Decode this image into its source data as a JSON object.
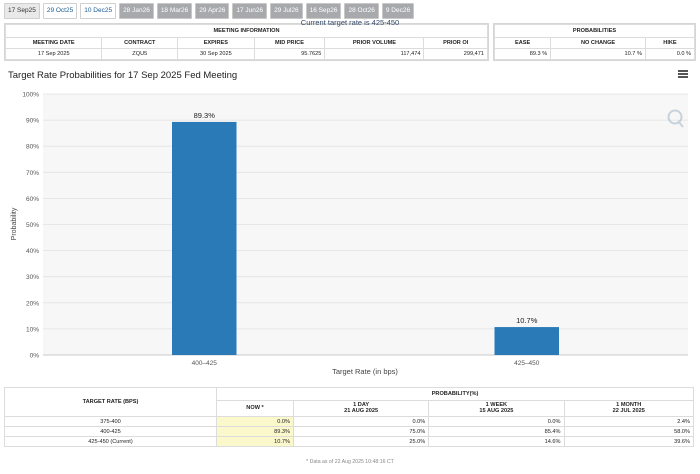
{
  "tabs": [
    "17 Sep25",
    "29 Oct25",
    "10 Dec25",
    "28 Jan26",
    "18 Mar26",
    "29 Apr26",
    "17 Jun26",
    "29 Jul26",
    "16 Sep26",
    "28 Oct26",
    "9 Dec26"
  ],
  "meeting_info": {
    "caption": "MEETING INFORMATION",
    "headers": [
      "MEETING DATE",
      "CONTRACT",
      "EXPIRES",
      "MID PRICE",
      "PRIOR VOLUME",
      "PRIOR OI"
    ],
    "row": [
      "17 Sep 2025",
      "ZQU5",
      "30 Sep 2025",
      "95.7625",
      "117,474",
      "299,471"
    ]
  },
  "probabilities": {
    "caption": "PROBABILITIES",
    "headers": [
      "EASE",
      "NO CHANGE",
      "HIKE"
    ],
    "row": [
      "89.3 %",
      "10.7 %",
      "0.0 %"
    ]
  },
  "chart_header": {
    "title": "Target Rate Probabilities for 17 Sep 2025 Fed Meeting",
    "subtitle": "Current target rate is 425-450"
  },
  "chart_data": {
    "type": "bar",
    "title": "Target Rate Probabilities for 17 Sep 2025 Fed Meeting",
    "subtitle": "Current target rate is 425-450",
    "categories": [
      "400–425",
      "425–450"
    ],
    "values": [
      89.3,
      10.7
    ],
    "data_labels": [
      "89.3%",
      "10.7%"
    ],
    "xlabel": "Target Rate (in bps)",
    "ylabel": "Probability",
    "ylim": [
      0,
      100
    ],
    "yticks": [
      "0%",
      "10%",
      "20%",
      "30%",
      "40%",
      "50%",
      "60%",
      "70%",
      "80%",
      "90%",
      "100%"
    ],
    "color": "#2a7ab8",
    "grid": true
  },
  "prob_table": {
    "header_rate": "TARGET RATE (BPS)",
    "header_prob": "PROBABILITY(%)",
    "cols": [
      {
        "l1": "NOW *",
        "l2": ""
      },
      {
        "l1": "1 DAY",
        "l2": "21 AUG 2025"
      },
      {
        "l1": "1 WEEK",
        "l2": "15 AUG 2025"
      },
      {
        "l1": "1 MONTH",
        "l2": "22 JUL 2025"
      }
    ],
    "rows": [
      {
        "rate": "375-400",
        "vals": [
          "0.0%",
          "0.0%",
          "0.0%",
          "2.4%"
        ]
      },
      {
        "rate": "400-425",
        "vals": [
          "89.3%",
          "75.0%",
          "85.4%",
          "58.0%"
        ]
      },
      {
        "rate": "425-450 (Current)",
        "vals": [
          "10.7%",
          "25.0%",
          "14.6%",
          "39.6%"
        ]
      }
    ],
    "footnote": "* Data as of 22 Aug 2025 10:48:16 CT"
  }
}
